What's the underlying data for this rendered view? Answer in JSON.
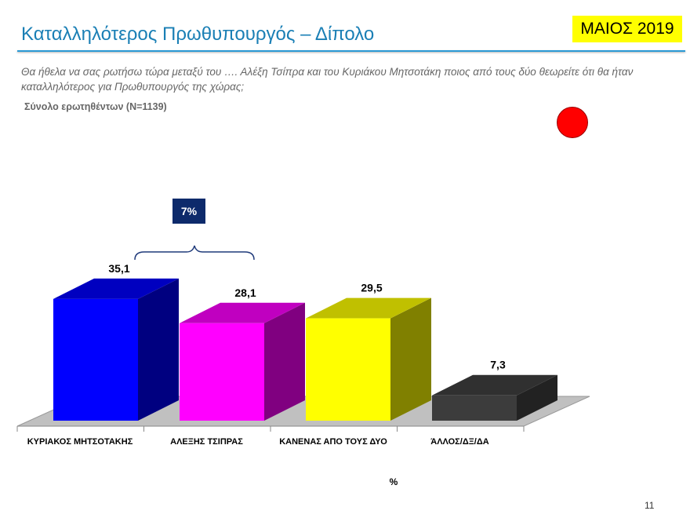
{
  "header": {
    "title": "Καταλληλότερος Πρωθυπουργός – Δίπολο",
    "date_badge": "ΜΑΙΟΣ 2019"
  },
  "question": "Θα ήθελα να σας ρωτήσω τώρα μεταξύ του …. Αλέξη Τσίπρα και του Κυριάκου Μητσοτάκη ποιος από τους δύο θεωρείτε ότι θα ήταν καταλληλότερος για Πρωθυπουργός της χώρας;",
  "base": "Σύνολο ερωτηθέντων (N=1139)",
  "page_number": "11",
  "colors": {
    "indicator": "#ff0000",
    "difference_box": "#0d2a6b"
  },
  "chart_data": {
    "type": "bar",
    "categories": [
      "ΚΥΡΙΑΚΟΣ ΜΗΤΣΟΤΑΚΗΣ",
      "ΑΛΕΞΗΣ ΤΣΙΠΡΑΣ",
      "ΚΑΝΕΝΑΣ ΑΠΟ ΤΟΥΣ ΔΥΟ",
      "ΆΛΛΟΣ/ΔΞ/ΔΑ"
    ],
    "values": [
      35.1,
      28.1,
      29.5,
      7.3
    ],
    "labels": [
      "35,1",
      "28,1",
      "29,5",
      "7,3"
    ],
    "colors": [
      "#0000ff",
      "#ff00ff",
      "#ffff00",
      "#3c3c3c"
    ],
    "side_colors": [
      "#000080",
      "#800080",
      "#808000",
      "#222222"
    ],
    "top_colors": [
      "#0000c0",
      "#c000c0",
      "#c0c000",
      "#303030"
    ],
    "xlabel": "%",
    "annotation": "7%",
    "ylim": [
      0,
      40
    ]
  }
}
